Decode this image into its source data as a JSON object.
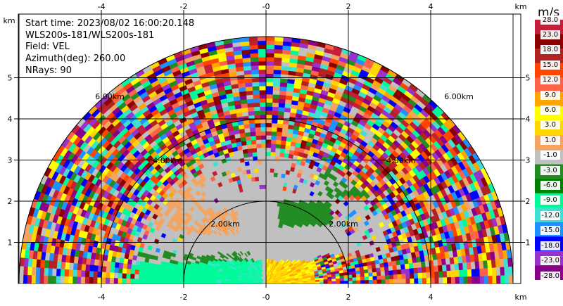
{
  "info": {
    "start_time": "Start time: 2023/08/02 16:00:20.148",
    "device": "WLS200s-181/WLS200s-181",
    "field": "Field: VEL",
    "azimuth": "Azimuth(deg): 260.00",
    "nrays": "NRays: 90"
  },
  "axes": {
    "x_unit": "km",
    "y_unit": "km",
    "x_ticks": [
      "-4",
      "-2",
      "-0",
      "2",
      "4"
    ],
    "y_ticks": [
      "1",
      "2",
      "3",
      "4",
      "5"
    ]
  },
  "range_rings": {
    "r2": "2.00km",
    "r4": "4.00km",
    "r6": "6.00km"
  },
  "colorbar": {
    "unit": "m/s",
    "labels": [
      "28.0",
      "23.0",
      "18.0",
      "15.0",
      "12.0",
      "9.0",
      "6.0",
      "3.0",
      "1.0",
      "-1.0",
      "-3.0",
      "-6.0",
      "-9.0",
      "-12.0",
      "-15.0",
      "-18.0",
      "-23.0",
      "-28.0"
    ],
    "colors": [
      "#c41e3a",
      "#8b0000",
      "#b22222",
      "#ff4500",
      "#ff6347",
      "#ffa500",
      "#ffff00",
      "#ffd700",
      "#f4a460",
      "#c0c0c0",
      "#228b22",
      "#008000",
      "#00fa9a",
      "#40e0d0",
      "#1e90ff",
      "#0000ff",
      "#9932cc",
      "#8b008b"
    ]
  }
}
